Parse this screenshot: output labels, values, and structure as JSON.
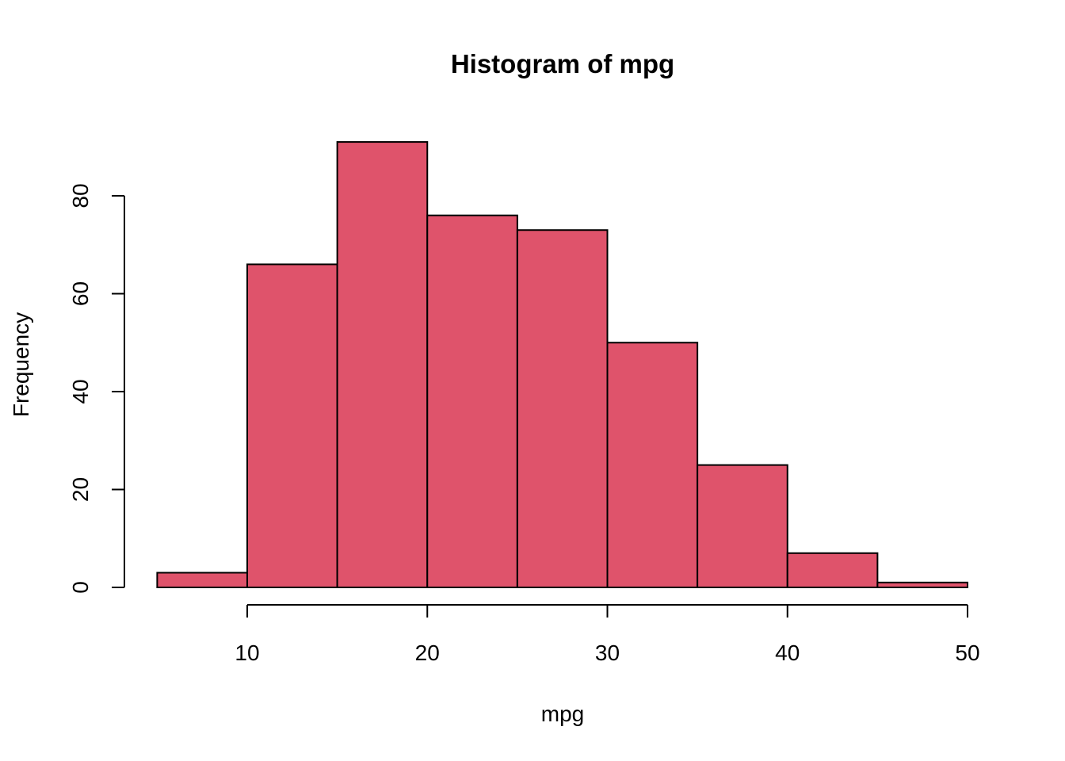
{
  "chart_data": {
    "type": "bar",
    "subtype": "histogram",
    "title": "Histogram of mpg",
    "xlabel": "mpg",
    "ylabel": "Frequency",
    "bins": [
      {
        "start": 5,
        "end": 10,
        "count": 3
      },
      {
        "start": 10,
        "end": 15,
        "count": 66
      },
      {
        "start": 15,
        "end": 20,
        "count": 91
      },
      {
        "start": 20,
        "end": 25,
        "count": 76
      },
      {
        "start": 25,
        "end": 30,
        "count": 73
      },
      {
        "start": 30,
        "end": 35,
        "count": 50
      },
      {
        "start": 35,
        "end": 40,
        "count": 25
      },
      {
        "start": 40,
        "end": 45,
        "count": 7
      },
      {
        "start": 45,
        "end": 50,
        "count": 1
      }
    ],
    "x_ticks": [
      10,
      20,
      30,
      40,
      50
    ],
    "y_ticks": [
      0,
      20,
      40,
      60,
      80
    ],
    "xlim": [
      5,
      50
    ],
    "ylim": [
      0,
      91
    ],
    "bar_color": "#DF536B",
    "grid": false,
    "legend": "none"
  }
}
